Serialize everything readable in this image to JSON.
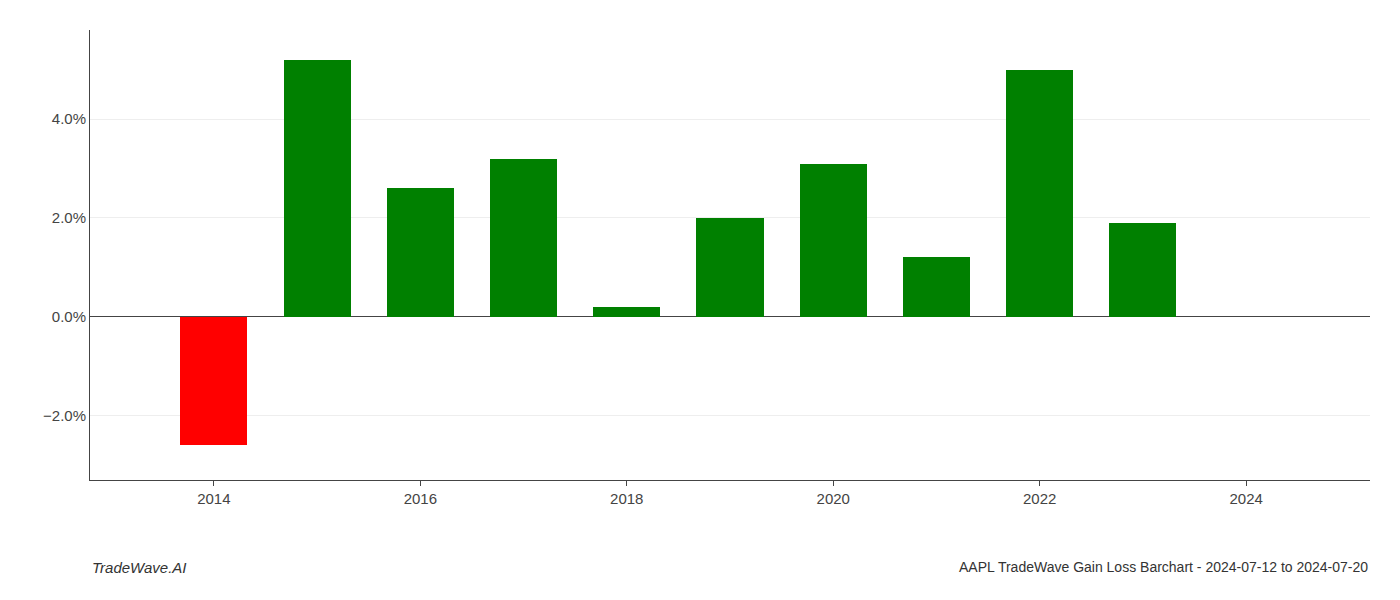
{
  "chart_data": {
    "type": "bar",
    "title": "AAPL TradeWave Gain Loss Barchart - 2024-07-12 to 2024-07-20",
    "annotations": [
      "TradeWave.AI"
    ],
    "x": [
      2014,
      2015,
      2016,
      2017,
      2018,
      2019,
      2020,
      2021,
      2022,
      2023
    ],
    "values": [
      -0.026,
      0.052,
      0.026,
      0.032,
      0.002,
      0.02,
      0.031,
      0.012,
      0.05,
      0.019
    ],
    "colors": [
      "#ff0000",
      "#008000",
      "#008000",
      "#008000",
      "#008000",
      "#008000",
      "#008000",
      "#008000",
      "#008000",
      "#008000"
    ],
    "xlim": [
      2012.8,
      2025.2
    ],
    "xticks": [
      2014,
      2016,
      2018,
      2020,
      2022,
      2024
    ],
    "ylim": [
      -0.033,
      0.058
    ],
    "yticks": [
      {
        "value": -0.02,
        "label": "−2.0%"
      },
      {
        "value": 0,
        "label": "0.0%"
      },
      {
        "value": 0.02,
        "label": "2.0%"
      },
      {
        "value": 0.04,
        "label": "4.0%"
      }
    ],
    "grid": true
  }
}
